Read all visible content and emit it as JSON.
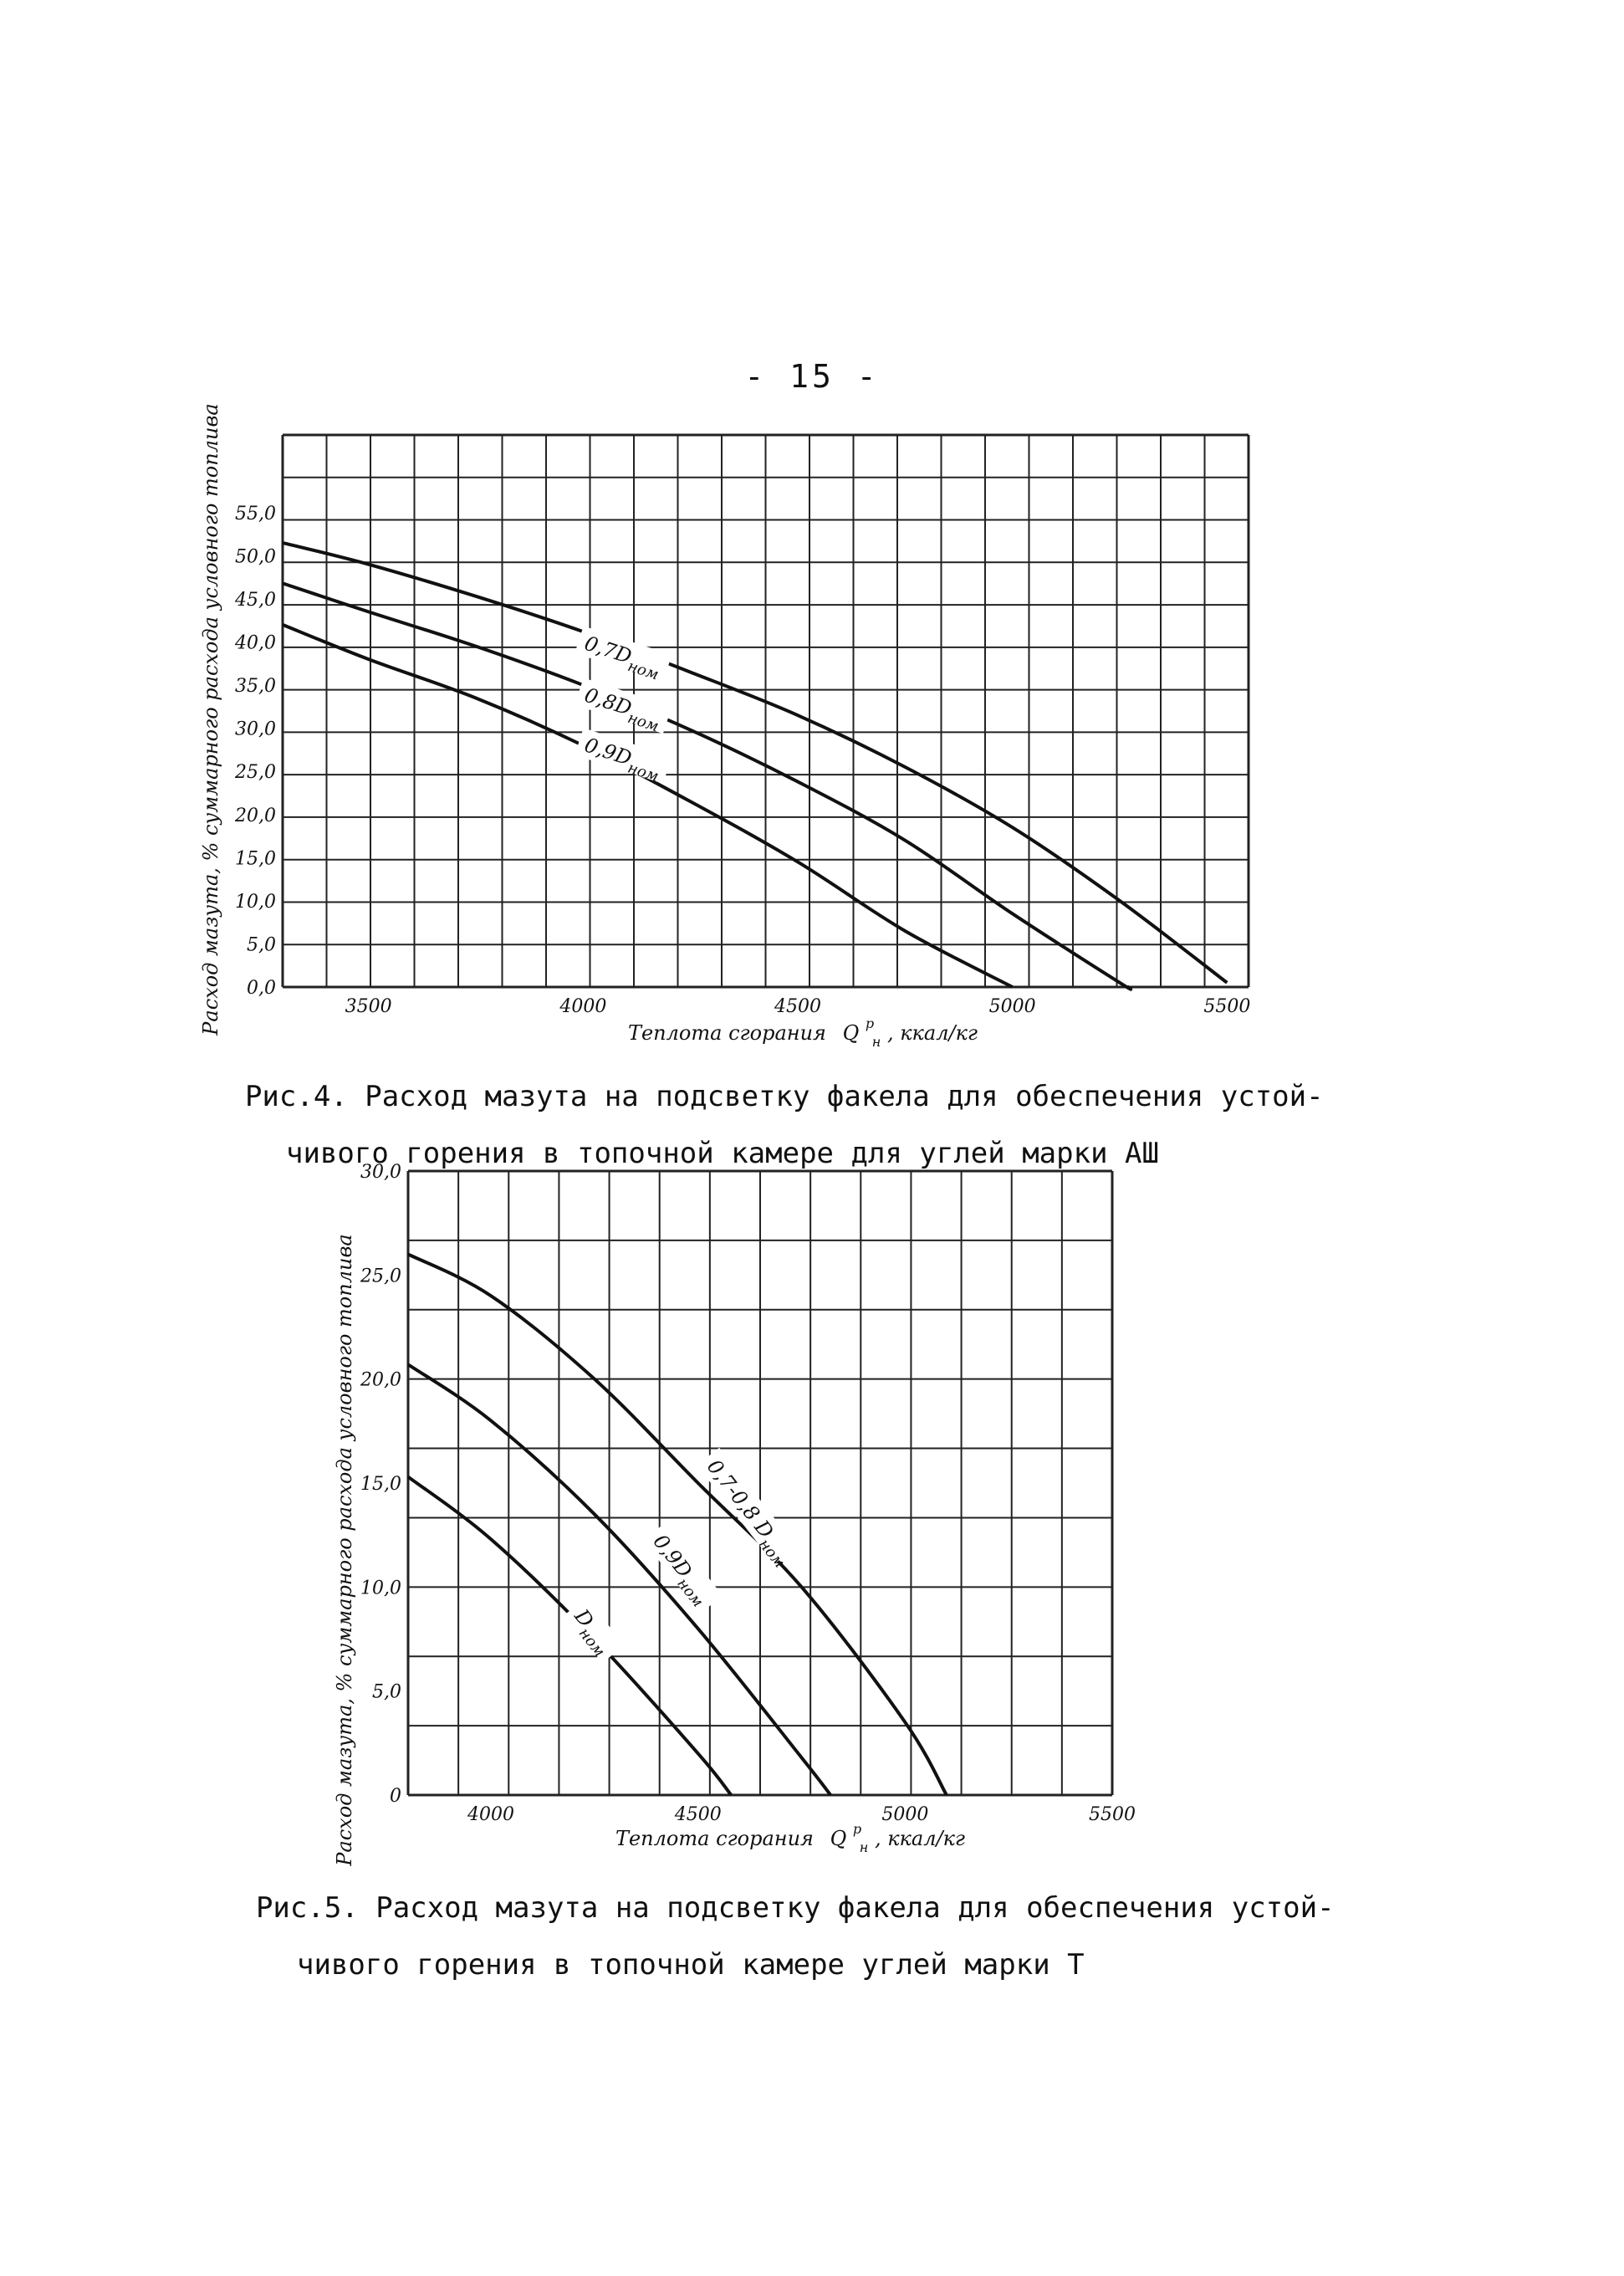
{
  "page": {
    "number": "- 15 -"
  },
  "chart_data": [
    {
      "type": "line",
      "ylabel": "Расход мазута, % суммарного расхода условного топлива",
      "xlabel": "Теплота сгорания",
      "xlabel_symbol": "Q",
      "xlabel_sup": "p",
      "xlabel_sub": "н",
      "xlabel_unit": ", ккал/кг",
      "x_ticks": [
        "3500",
        "4000",
        "4500",
        "5000",
        "5500"
      ],
      "x_tick_values": [
        3500,
        4000,
        4500,
        5000,
        5500
      ],
      "y_ticks": [
        "0,0",
        "5,0",
        "10,0",
        "15,0",
        "20,0",
        "25,0",
        "30,0",
        "35,0",
        "40,0",
        "45,0",
        "50,0",
        "55,0"
      ],
      "y_tick_values": [
        0,
        5,
        10,
        15,
        20,
        25,
        30,
        35,
        40,
        45,
        50,
        55
      ],
      "xlim": [
        3300,
        5550
      ],
      "ylim": [
        0,
        64
      ],
      "grid": true,
      "series": [
        {
          "label_main": "0,7D",
          "label_sub": "ном",
          "x": [
            3300,
            3500,
            3750,
            4000,
            4250,
            4500,
            4750,
            5000,
            5250,
            5500
          ],
          "y": [
            51.5,
            49,
            45.3,
            41.2,
            36.5,
            31.5,
            25.5,
            18.5,
            10,
            0.5
          ]
        },
        {
          "label_main": "0,8D",
          "label_sub": "ном",
          "x": [
            3300,
            3500,
            3750,
            4000,
            4250,
            4500,
            4750,
            5000,
            5250,
            5270
          ],
          "y": [
            46.8,
            43.5,
            39.5,
            35,
            29.8,
            23.8,
            17,
            8.5,
            0.5,
            0
          ]
        },
        {
          "label_main": "0,9D",
          "label_sub": "ном",
          "x": [
            3300,
            3500,
            3750,
            4000,
            4250,
            4500,
            4750,
            5000
          ],
          "y": [
            42,
            38,
            33.5,
            28,
            21.5,
            14.5,
            6.5,
            0
          ]
        }
      ],
      "caption_line1": "Рис.4. Расход мазута на подсветку факела для обеспечения устой-",
      "caption_line2": "чивого горения в топочной камере для углей марки АШ"
    },
    {
      "type": "line",
      "ylabel": "Расход мазута, % суммарного расхода условного топлива",
      "xlabel": "Теплота сгорания",
      "xlabel_symbol": "Q",
      "xlabel_sup": "p",
      "xlabel_sub": "н",
      "xlabel_unit": ", ккал/кг",
      "x_ticks": [
        "4000",
        "4500",
        "5000",
        "5500"
      ],
      "x_tick_values": [
        4000,
        4500,
        5000,
        5500
      ],
      "y_ticks": [
        "0",
        "5,0",
        "10,0",
        "15,0",
        "20,0",
        "25,0",
        "30,0"
      ],
      "y_tick_values": [
        0,
        5,
        10,
        15,
        20,
        25,
        30
      ],
      "xlim": [
        3800,
        5500
      ],
      "ylim": [
        0,
        30
      ],
      "grid": true,
      "series": [
        {
          "label_main": "0,7-0,8 D",
          "label_sub": "ном",
          "x": [
            3800,
            4000,
            4250,
            4500,
            4750,
            5000,
            5100
          ],
          "y": [
            26,
            24,
            20,
            15,
            10,
            3.5,
            0
          ]
        },
        {
          "label_main": "0,9D",
          "label_sub": "ном",
          "x": [
            3800,
            4000,
            4250,
            4500,
            4750,
            4820
          ],
          "y": [
            20.7,
            18,
            13.5,
            8,
            1.8,
            0
          ]
        },
        {
          "label_main": "D",
          "label_sub": "ном",
          "x": [
            3800,
            4000,
            4250,
            4500,
            4580
          ],
          "y": [
            15.3,
            12.3,
            7.5,
            2,
            0
          ]
        }
      ],
      "caption_line1": "Рис.5. Расход мазута на подсветку факела для обеспечения устой-",
      "caption_line2": "чивого горения в топочной камере углей марки Т"
    }
  ]
}
